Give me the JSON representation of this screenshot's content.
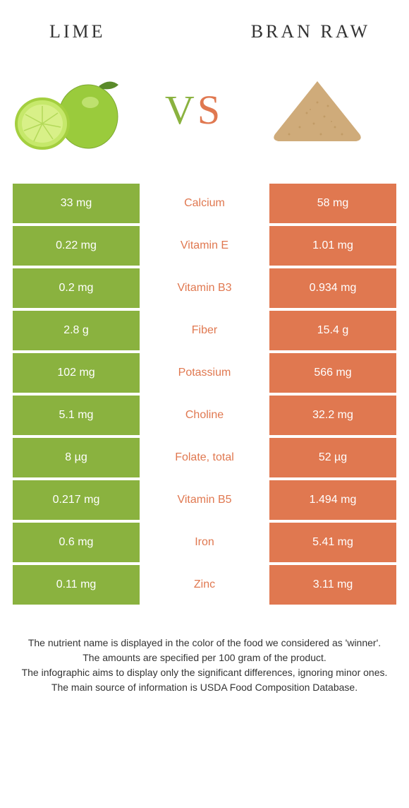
{
  "header": {
    "left": "LIME",
    "right": "BRAN RAW"
  },
  "vs": {
    "v": "V",
    "s": "S"
  },
  "colors": {
    "left_bg": "#8ab23f",
    "right_bg": "#e07850",
    "left_text": "#8ab23f",
    "right_text": "#e07850",
    "cell_text": "#ffffff"
  },
  "rows": [
    {
      "left": "33 mg",
      "mid": "Calcium",
      "right": "58 mg",
      "winner": "right"
    },
    {
      "left": "0.22 mg",
      "mid": "Vitamin E",
      "right": "1.01 mg",
      "winner": "right"
    },
    {
      "left": "0.2 mg",
      "mid": "Vitamin B3",
      "right": "0.934 mg",
      "winner": "right"
    },
    {
      "left": "2.8 g",
      "mid": "Fiber",
      "right": "15.4 g",
      "winner": "right"
    },
    {
      "left": "102 mg",
      "mid": "Potassium",
      "right": "566 mg",
      "winner": "right"
    },
    {
      "left": "5.1 mg",
      "mid": "Choline",
      "right": "32.2 mg",
      "winner": "right"
    },
    {
      "left": "8 µg",
      "mid": "Folate, total",
      "right": "52 µg",
      "winner": "right"
    },
    {
      "left": "0.217 mg",
      "mid": "Vitamin B5",
      "right": "1.494 mg",
      "winner": "right"
    },
    {
      "left": "0.6 mg",
      "mid": "Iron",
      "right": "5.41 mg",
      "winner": "right"
    },
    {
      "left": "0.11 mg",
      "mid": "Zinc",
      "right": "3.11 mg",
      "winner": "right"
    }
  ],
  "footer": [
    "The nutrient name is displayed in the color of the food we considered as 'winner'.",
    "The amounts are specified per 100 gram of the product.",
    "The infographic aims to display only the significant differences, ignoring minor ones.",
    "The main source of information is USDA Food Composition Database."
  ]
}
